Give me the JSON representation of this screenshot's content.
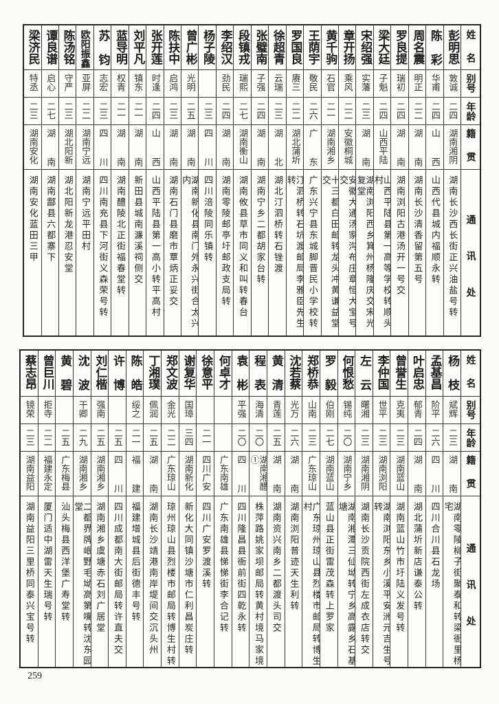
{
  "headers": {
    "name": "姓名",
    "alias": "别号",
    "age": "年龄",
    "origin": "籍贯",
    "address": "通讯处"
  },
  "top_table": [
    {
      "name": "彭明思",
      "alias": "敦诚",
      "age": "二四",
      "origin": "湖南湘阴",
      "address": "湖南长沙西长街正兴油盐号转"
    },
    {
      "name": "陈彩",
      "alias": "华甫",
      "age": "二四",
      "origin": "山西",
      "address": "山西代县城内福顺永转"
    },
    {
      "name": "周名震",
      "alias": "明正",
      "age": "二二",
      "origin": "湖南",
      "address": "湖南长沙清香留第五号"
    },
    {
      "name": "罗良提",
      "alias": "瑞初",
      "age": "二四",
      "origin": "湖南",
      "address": "湖南浏阳古港汤开一号交"
    },
    {
      "name": "梁大廷",
      "alias": "子魁",
      "age": "二四",
      "origin": "山西平陆",
      "address": "山西平陆县第一高等学校转顺头村"
    },
    {
      "name": "宋绍强",
      "alias": "实藩",
      "age": "二三",
      "origin": "湖南",
      "address": "湖南浏阳西乡箕州杨隆庆交宋光复堂"
    },
    {
      "name": "章开扬",
      "alias": "乘风",
      "age": "二二",
      "origin": "安徽桐城",
      "address": "安徽大通汤家沟布庄章恒大宝号交"
    },
    {
      "name": "黄千驹",
      "alias": "石官",
      "age": "二一",
      "origin": "湖南湘乡",
      "address": "十三都白田邮转龙头冲黄谦益堂交"
    },
    {
      "name": "王荫宇",
      "alias": "敬民",
      "age": "二六",
      "origin": "广东",
      "address": "广东兴宁县东城脚晋民小学校转"
    },
    {
      "name": "罗国良",
      "alias": "赓三",
      "age": "二二",
      "origin": "湖北蒲圻",
      "address": "汀泗桥转石坑渡邮局李雅臣先生转"
    },
    {
      "name": "徐超青",
      "alias": "云瑞",
      "age": "二三",
      "origin": "湖北",
      "address": "湖北汀泗桥转石锉渡"
    },
    {
      "name": "张璧南",
      "alias": "子强",
      "age": "二四",
      "origin": "湖南",
      "address": "湖南宁乡二都胡家台转"
    },
    {
      "name": "段镇戎",
      "alias": "瑞熙",
      "age": "二七",
      "origin": "湖南衡山",
      "address": "湖南攸县草市同义和叫转春台"
    },
    {
      "name": "李绍汉",
      "alias": "劲民",
      "age": "二四",
      "origin": "湖南",
      "address": "湖南零陵邮亭圩邮政支局转"
    },
    {
      "name": "杨子陵",
      "alias": "",
      "age": "二三",
      "origin": "四川",
      "address": "四川涪陵同乐镇转"
    },
    {
      "name": "曾广彬",
      "alias": "光明",
      "age": "二五",
      "origin": "湖南",
      "address": "湖南新化县南门外永兴街合太兴内"
    },
    {
      "name": "陈扶中",
      "alias": "启鸿",
      "age": "二三",
      "origin": "湖南",
      "address": "湖南石门县磨市覃炳正妥交"
    },
    {
      "name": "张开莲",
      "alias": "时逢",
      "age": "二四",
      "origin": "山西",
      "address": "山西平陆县第一高小转平高村"
    },
    {
      "name": "刘平凡",
      "alias": "镇东",
      "age": "二一",
      "origin": "湖南",
      "address": "新田县城南濂溪祠侧交"
    },
    {
      "name": "蓝导明",
      "alias": "权青",
      "age": "二一",
      "origin": "湖南",
      "address": "湖南醴陵北正街福春堂转"
    },
    {
      "name": "苏钧",
      "alias": "志宏",
      "age": "二三",
      "origin": "四川",
      "address": "四川南充县下河街义森荣号转"
    },
    {
      "name": "欧阳振鑫",
      "alias": "亚屏",
      "age": "二二",
      "origin": "湖南宁远",
      "address": "湖南宁远平田村"
    },
    {
      "name": "陈汤铭",
      "alias": "守严",
      "age": "二三",
      "origin": "湖北阳新",
      "address": "湖北阳新龙港忍安堂"
    },
    {
      "name": "谭良谱",
      "alias": "启心",
      "age": "二七",
      "origin": "湖南",
      "address": "湖南酃县六都寨下"
    },
    {
      "name": "梁济民",
      "alias": "特丞",
      "age": "二三",
      "origin": "湖南安化",
      "address": "湖南安化蓝田三甲"
    }
  ],
  "bottom_table": [
    {
      "name": "杨枝",
      "alias": "斌辉",
      "age": "二三",
      "origin": "湖南",
      "address": "湖南零陵柳子街聚泰和转梁衙里杨宅"
    },
    {
      "name": "孟基昌",
      "alias": "阶平",
      "age": "二六",
      "origin": "四川",
      "address": "四川合川县石龙场"
    },
    {
      "name": "叶启忠",
      "alias": "郁青",
      "age": "二四",
      "origin": "湖南",
      "address": "湖北蒲圻新店谦泰公转"
    },
    {
      "name": "曾誉生",
      "alias": "克夷",
      "age": "二三",
      "origin": "湖南蓝山",
      "address": "湖南蓝山竹市圩陆义发号转"
    },
    {
      "name": "李仲国",
      "alias": "世平",
      "age": "二三",
      "origin": "湖南浏阳",
      "address": "湖南浏阳东乡小溪平安洲元吉生号转"
    },
    {
      "name": "左云",
      "alias": "曙湘",
      "age": "二三",
      "origin": "湖南湘阴",
      "address": "湖南长沙贡院西街左成衣店转交"
    },
    {
      "name": "何恨愁",
      "alias": "锡纯",
      "age": "二〇",
      "origin": "湖南宁乡",
      "address": "湖南湘潭三仙坳转宁乡高露乡石基塘"
    },
    {
      "name": "罗毅",
      "alias": "伯刚",
      "age": "二七",
      "origin": "湖南蓝山",
      "address": "蓝山县正街雷茂森转上罗家"
    },
    {
      "name": "郑桥恭",
      "alias": "山南",
      "age": "二三",
      "origin": "广东琼山",
      "address": "广东琼州琼山县烈楼市邮局转博生村"
    },
    {
      "name": "沈若蔡",
      "alias": "光万",
      "age": "二六",
      "origin": "湖南",
      "address": "湖南浏阳普迹天生利转"
    },
    {
      "name": "黄清",
      "alias": "青莲",
      "age": "二五",
      "origin": "湖南",
      "address": "湖南资兴南乡二都渡头司交"
    },
    {
      "name": "程表",
      "alias": "海清",
      "age": "二〇",
      "origin": "湖南湘醴①",
      "address": "株萍路姚家坝邮局转黄村境马家境"
    },
    {
      "name": "袁彬",
      "alias": "平强",
      "age": "二〇",
      "origin": "四川",
      "address": "四川隆昌县衙前街四乾永转"
    },
    {
      "name": "何卓才",
      "alias": "",
      "age": "",
      "origin": "广东南雄",
      "address": "广东南雄县悌悌街李合记转"
    },
    {
      "name": "徐意平",
      "alias": "",
      "age": "二一",
      "origin": "四川广安",
      "address": "四川广安罗渡溪转"
    },
    {
      "name": "谢复华",
      "alias": "国璋",
      "age": "三四",
      "origin": "湖南新化",
      "address": "新化大同镇沙塘市仁利昌炭庄转"
    },
    {
      "name": "郑文波",
      "alias": "金光",
      "age": "二二",
      "origin": "广东琼山",
      "address": "琼州琼山县烈楼市邮局转博生村转"
    },
    {
      "name": "丁湘璞",
      "alias": "佩润",
      "age": "二五",
      "origin": "湖南",
      "address": "湖南长沙靖港南岸堤间交沉头州"
    },
    {
      "name": "陈皓",
      "alias": "绥之",
      "age": "二一",
      "origin": "福建",
      "address": "福建增城县后街德丰号转"
    },
    {
      "name": "许博",
      "alias": "",
      "age": "二五",
      "origin": "四川",
      "address": "四川成都南大街邮局转许直夫交"
    },
    {
      "name": "刘仁楷",
      "alias": "强南",
      "age": "二五",
      "origin": "湖南湘乡",
      "address": "湖南湘乡虞塘赤石刘广居堂"
    },
    {
      "name": "沈波",
      "alias": "干卿",
      "age": "二九",
      "origin": "湖南湘乡",
      "address": "二都界牌岷野毛坳高第嘴转沈东园堂"
    },
    {
      "name": "黄碧",
      "alias": "",
      "age": "二五",
      "origin": "广东梅县",
      "address": "汕头梅县西洋堡广寿堂转"
    },
    {
      "name": "曾巨川",
      "alias": "拒寺",
      "age": "二二",
      "origin": "福建永定",
      "address": "厦门适中湖雷天生瑞号转"
    },
    {
      "name": "蔡志昂",
      "alias": "镜荣",
      "age": "二三",
      "origin": "湖南益阳",
      "address": "湖南益阳三里桥同泰兴宝号转"
    }
  ],
  "page_number": "259"
}
